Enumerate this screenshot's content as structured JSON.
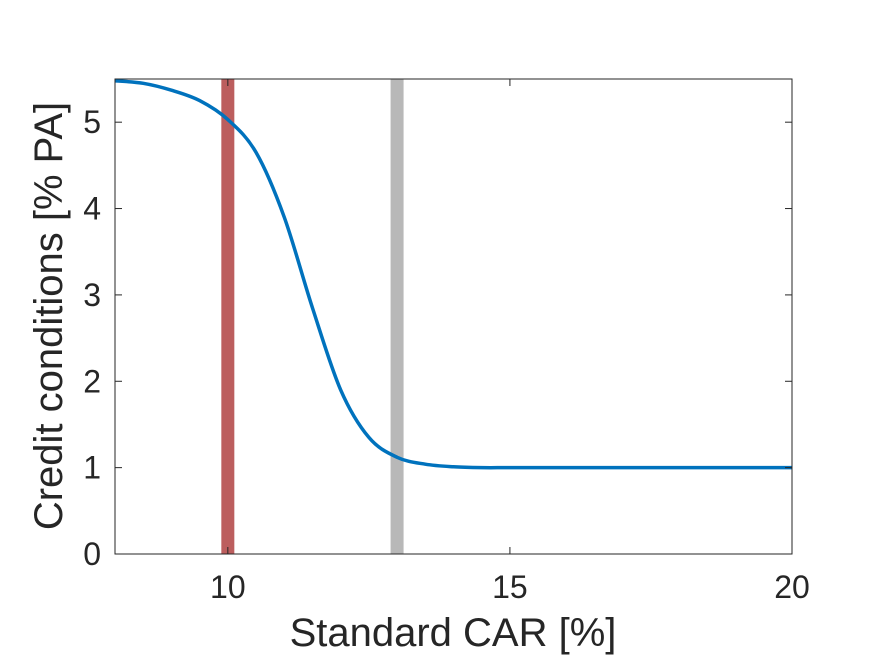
{
  "chart_data": {
    "type": "line",
    "xlabel": "Standard CAR [%]",
    "ylabel": "Credit conditions [% PA]",
    "xlim": [
      8,
      20
    ],
    "ylim": [
      0,
      5.5
    ],
    "xticks": [
      10,
      15,
      20
    ],
    "yticks": [
      0,
      1,
      2,
      3,
      4,
      5
    ],
    "grid": false,
    "series": [
      {
        "color": "#0072BD",
        "x": [
          8.0,
          8.5,
          9.0,
          9.5,
          10.0,
          10.5,
          11.0,
          11.5,
          12.0,
          12.5,
          13.0,
          13.5,
          14.0,
          14.5,
          15.0,
          16.0,
          17.0,
          18.0,
          19.0,
          20.0
        ],
        "y": [
          5.48,
          5.45,
          5.37,
          5.25,
          5.03,
          4.65,
          3.9,
          2.85,
          1.9,
          1.35,
          1.12,
          1.04,
          1.01,
          1.0,
          1.0,
          1.0,
          1.0,
          1.0,
          1.0,
          1.0
        ]
      }
    ],
    "vertical_lines": [
      {
        "x": 10.0,
        "color": "#BC5E5E"
      },
      {
        "x": 13.0,
        "color": "#B8B8B8"
      }
    ]
  }
}
